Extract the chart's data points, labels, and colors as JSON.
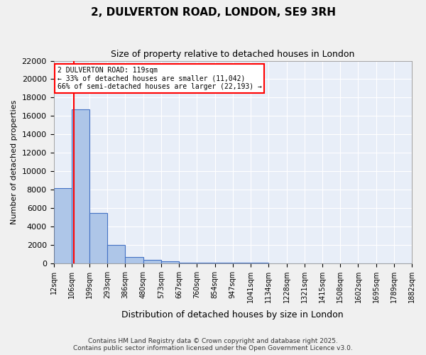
{
  "title": "2, DULVERTON ROAD, LONDON, SE9 3RH",
  "subtitle": "Size of property relative to detached houses in London",
  "xlabel": "Distribution of detached houses by size in London",
  "ylabel": "Number of detached properties",
  "property_size": 119,
  "property_label": "2 DULVERTON ROAD: 119sqm",
  "annotation_line1": "2 DULVERTON ROAD: 119sqm",
  "annotation_line2": "← 33% of detached houses are smaller (11,042)",
  "annotation_line3": "66% of semi-detached houses are larger (22,193) →",
  "bar_color": "#aec6e8",
  "bar_edge_color": "#4472c4",
  "bar_alpha": 0.7,
  "vline_color": "red",
  "annotation_box_color": "red",
  "background_color": "#e8eef8",
  "ylim": [
    0,
    22000
  ],
  "yticks": [
    0,
    2000,
    4000,
    6000,
    8000,
    10000,
    12000,
    14000,
    16000,
    18000,
    20000,
    22000
  ],
  "bin_edges": [
    12,
    106,
    199,
    293,
    386,
    480,
    573,
    667,
    760,
    854,
    947,
    1041,
    1134,
    1228,
    1321,
    1415,
    1508,
    1602,
    1695,
    1789,
    1882
  ],
  "bin_labels": [
    "12sqm",
    "106sqm",
    "199sqm",
    "293sqm",
    "386sqm",
    "480sqm",
    "573sqm",
    "667sqm",
    "760sqm",
    "854sqm",
    "947sqm",
    "1041sqm",
    "1134sqm",
    "1228sqm",
    "1321sqm",
    "1415sqm",
    "1508sqm",
    "1602sqm",
    "1695sqm",
    "1789sqm",
    "1882sqm"
  ],
  "bar_heights": [
    8150,
    16700,
    5450,
    1950,
    650,
    350,
    170,
    80,
    50,
    35,
    20,
    15,
    10,
    8,
    6,
    5,
    4,
    3,
    2,
    1
  ],
  "footer_line1": "Contains HM Land Registry data © Crown copyright and database right 2025.",
  "footer_line2": "Contains public sector information licensed under the Open Government Licence v3.0."
}
